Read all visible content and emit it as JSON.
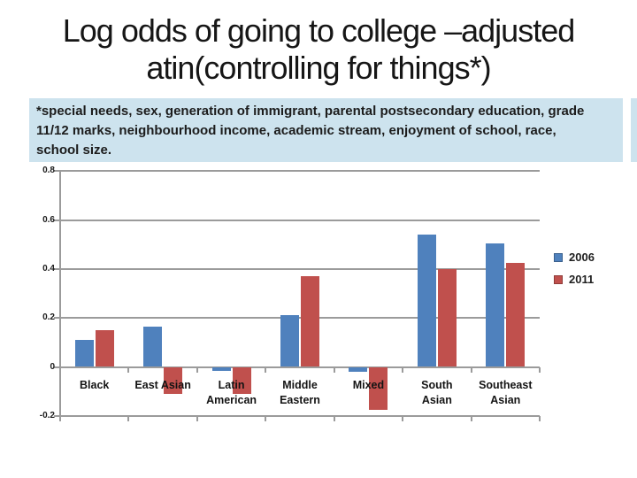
{
  "title": {
    "line1": "Log odds of going to college –adjusted",
    "line2": "(controlling for things*)"
  },
  "note": {
    "lines": [
      "*special needs, sex, generation of immigrant, parental postsecondary education, grade",
      "11/12 marks, neighbourhood income, academic stream, enjoyment of school, race,",
      "school size."
    ]
  },
  "chart_data": {
    "type": "bar",
    "categories": [
      "Black",
      "East Asian",
      "Latin American",
      "Middle Eastern",
      "Mixed",
      "South Asian",
      "Southeast Asian"
    ],
    "category_label_lines": [
      [
        "Black"
      ],
      [
        "East Asian"
      ],
      [
        "Latin",
        "American"
      ],
      [
        "Middle",
        "Eastern"
      ],
      [
        "Mixed"
      ],
      [
        "South",
        "Asian"
      ],
      [
        "Southeast",
        "Asian"
      ]
    ],
    "series": [
      {
        "name": "2006",
        "color": "#4F81BD",
        "values": [
          0.11,
          0.165,
          -0.015,
          0.21,
          -0.02,
          0.54,
          0.505
        ]
      },
      {
        "name": "2011",
        "color": "#C0504D",
        "values": [
          0.15,
          -0.11,
          -0.11,
          0.37,
          -0.175,
          0.4,
          0.425
        ]
      }
    ],
    "title": "",
    "xlabel": "",
    "ylabel": "",
    "ylim": [
      -0.2,
      0.8
    ],
    "y_ticks": [
      0.8,
      0.6,
      0.4,
      0.2,
      0,
      -0.2
    ],
    "y_tick_labels": [
      "0.8",
      "0.6",
      "0.4",
      "0.2",
      "0",
      "-0.2"
    ],
    "grid": true,
    "legend_position": "right"
  },
  "colors": {
    "bar_2006": "#4F81BD",
    "bar_2011": "#C0504D",
    "gridline": "#9B9B9B",
    "note_fill": "#CDE3EE",
    "text": "#1a1a1a"
  }
}
